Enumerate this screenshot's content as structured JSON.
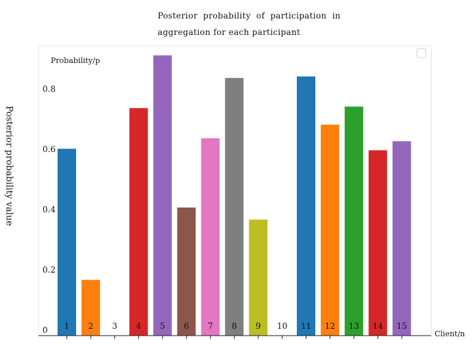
{
  "chart_data": {
    "type": "bar",
    "title_line1": "Posterior  probability  of  participation  in",
    "title_line2": "aggregation for each participant",
    "ylabel": "Posterior probability value",
    "xlabel": "Client/n",
    "inner_label": "Probability/p",
    "categories": [
      "1",
      "2",
      "3",
      "4",
      "5",
      "6",
      "7",
      "8",
      "9",
      "10",
      "11",
      "12",
      "13",
      "14",
      "15"
    ],
    "values": [
      0.62,
      0.185,
      0.0,
      0.755,
      0.93,
      0.425,
      0.655,
      0.855,
      0.385,
      0.0,
      0.86,
      0.7,
      0.76,
      0.615,
      0.645
    ],
    "colors": [
      "#1f77b4",
      "#ff7f0e",
      "#2ca02c",
      "#d62728",
      "#9467bd",
      "#8c564b",
      "#e377c2",
      "#7f7f7f",
      "#bcbd22",
      "#17becf",
      "#1f77b4",
      "#ff7f0e",
      "#2ca02c",
      "#d62728",
      "#9467bd"
    ],
    "yticks": [
      0,
      0.2,
      0.4,
      0.6,
      0.8
    ],
    "ytick_labels": [
      "0",
      "0.2",
      "0.4",
      "0.6",
      "0.8"
    ],
    "ylim": [
      0,
      1.0
    ],
    "grid": false,
    "legend": "top-right (empty)"
  }
}
